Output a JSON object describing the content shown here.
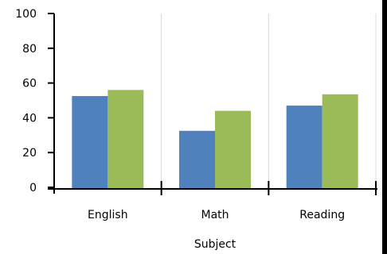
{
  "chart_data": {
    "type": "bar",
    "categories": [
      "English",
      "Math",
      "Reading"
    ],
    "series": [
      {
        "values": [
          52.5,
          32.5,
          47
        ],
        "color": "#4f81bd"
      },
      {
        "values": [
          56,
          44,
          53.5
        ],
        "color": "#9bbb59"
      }
    ],
    "xlabel": "Subject",
    "ylabel": "",
    "ylim": [
      0,
      100
    ],
    "yticks": [
      0,
      20,
      40,
      60,
      80,
      100
    ],
    "grid": {
      "vertical": true,
      "horizontal": false
    },
    "legend": "none"
  }
}
